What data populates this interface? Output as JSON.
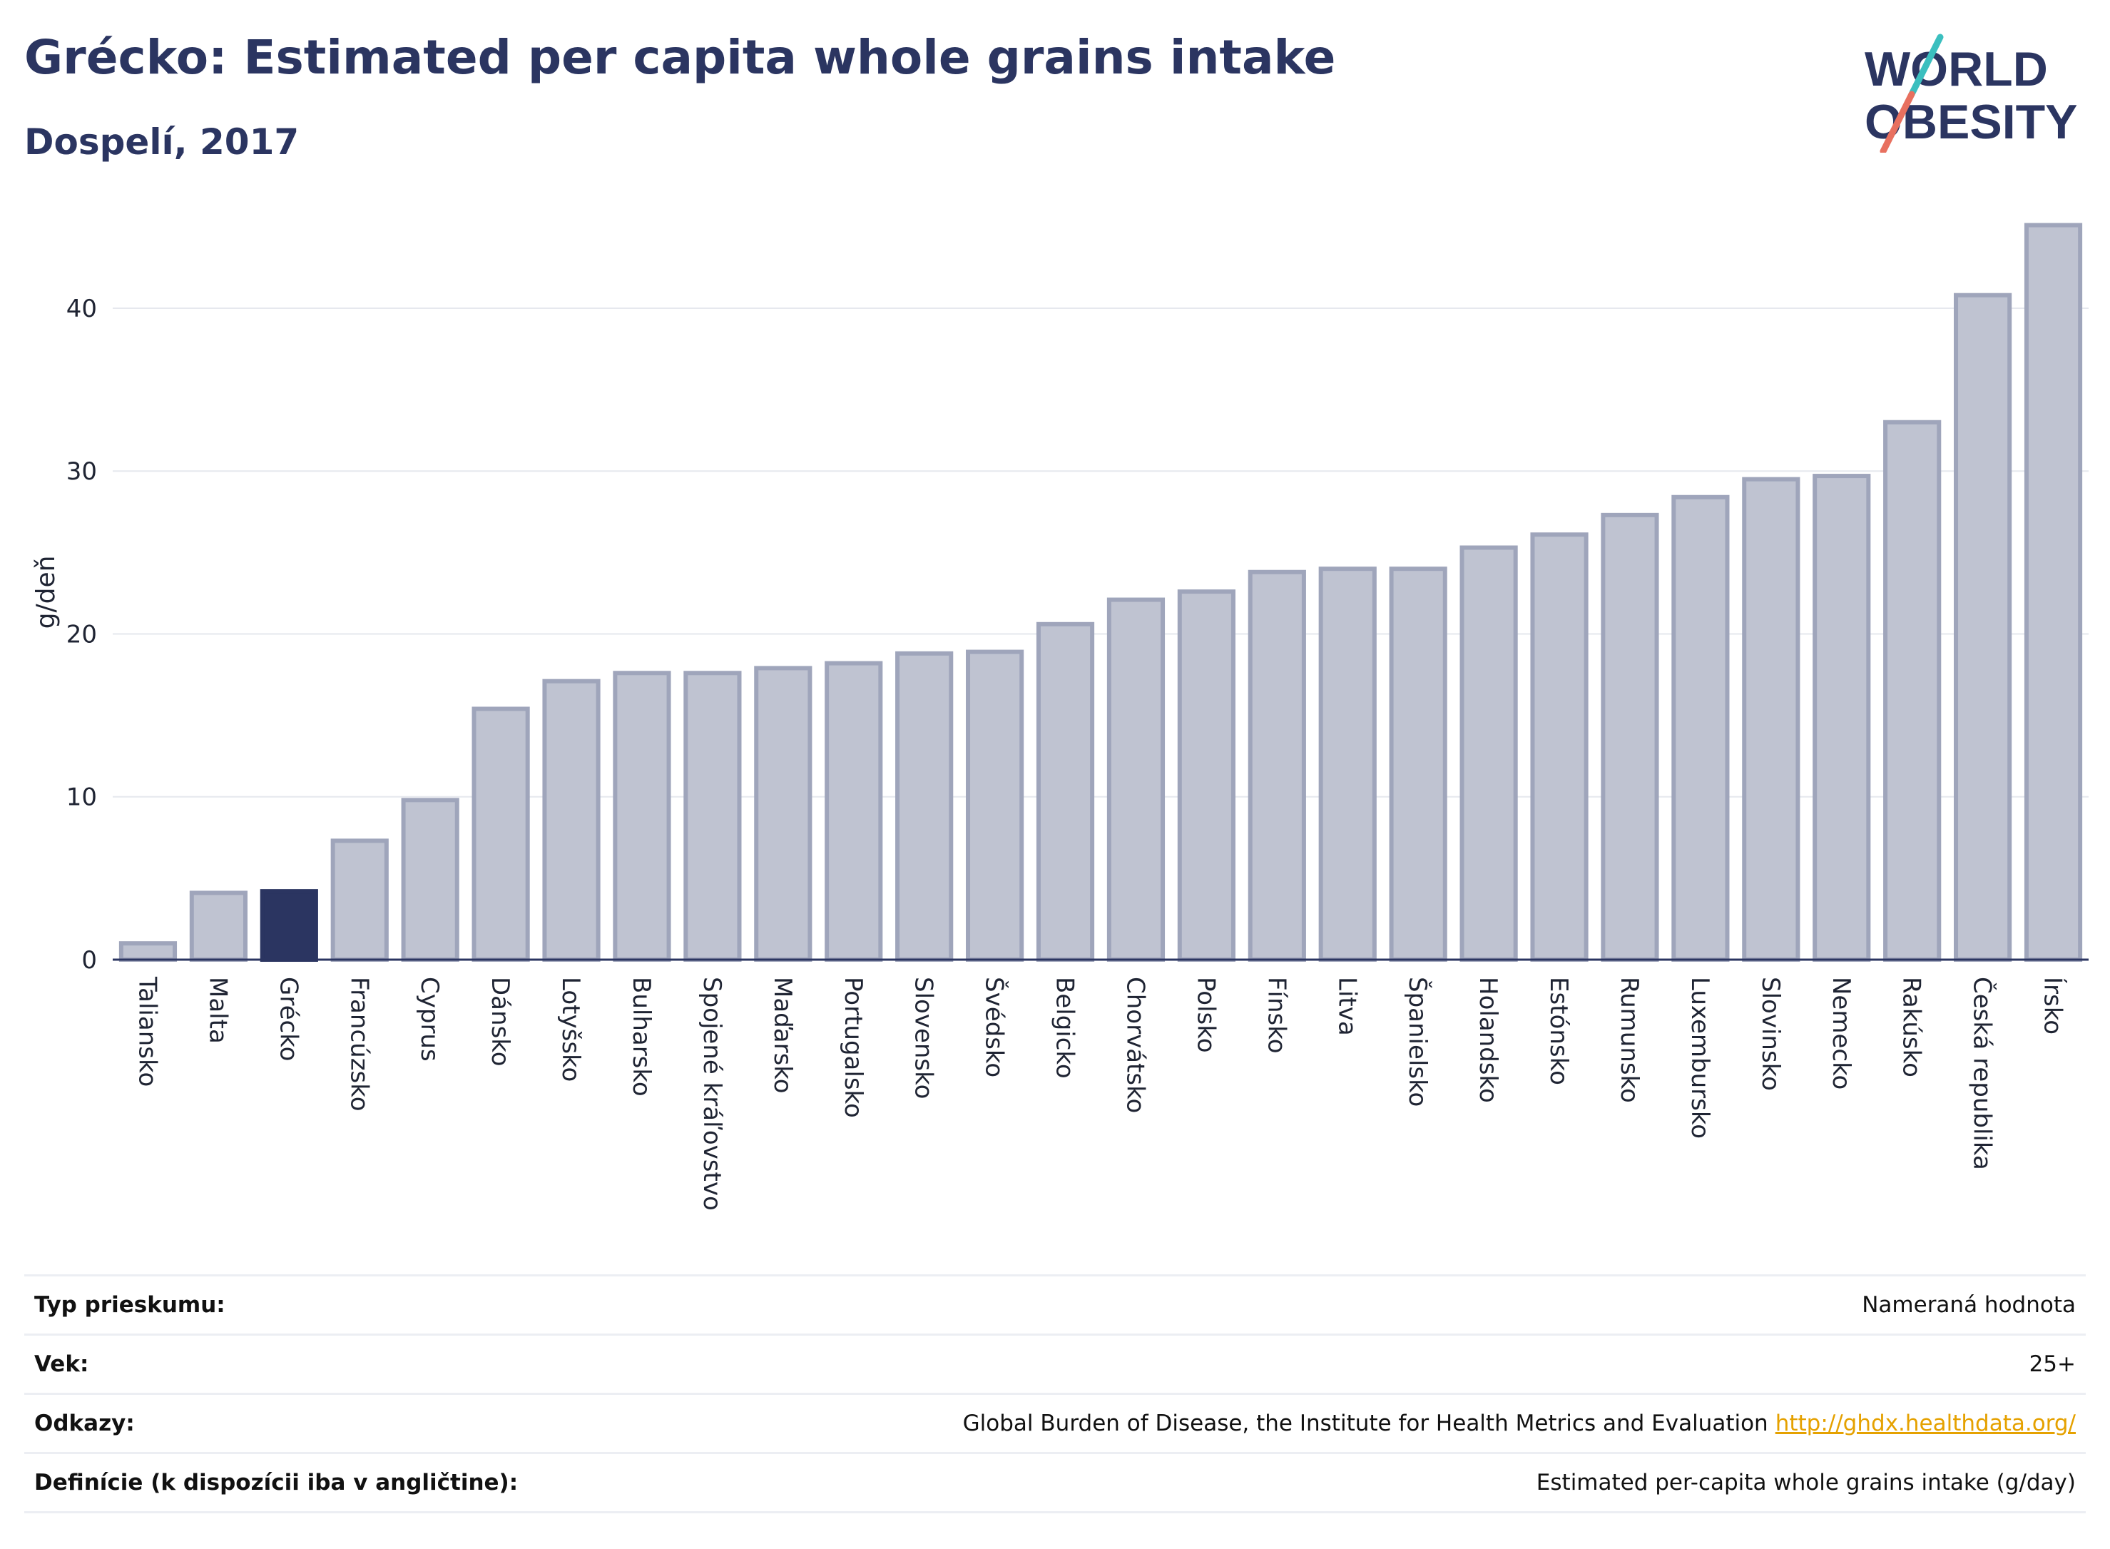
{
  "header": {
    "title": "Grécko: Estimated per capita whole grains intake",
    "subtitle": "Dospelí, 2017"
  },
  "logo": {
    "line1": "WORLD",
    "line2": "OBESITY"
  },
  "chart_data": {
    "type": "bar",
    "ylabel": "g/deň",
    "xlabel": "",
    "ylim": [
      0,
      46
    ],
    "yticks": [
      0,
      10,
      20,
      30,
      40
    ],
    "grid": true,
    "highlight": "Grécko",
    "colors": {
      "bar": "#bfc3d1",
      "bar_border": "#9fa5bb",
      "highlight": "#2b3561",
      "grid": "#e6e8ee",
      "axis": "#2b3561"
    },
    "categories": [
      "Taliansko",
      "Malta",
      "Grécko",
      "Francúzsko",
      "Cyprus",
      "Dánsko",
      "Lotyšsko",
      "Bulharsko",
      "Spojené kráľovstvo",
      "Maďarsko",
      "Portugalsko",
      "Slovensko",
      "Švédsko",
      "Belgicko",
      "Chorvátsko",
      "Polsko",
      "Fínsko",
      "Litva",
      "Španielsko",
      "Holandsko",
      "Estónsko",
      "Rumunsko",
      "Luxembursko",
      "Slovinsko",
      "Nemecko",
      "Rakúsko",
      "Česká republika",
      "Írsko"
    ],
    "values": [
      1.0,
      4.1,
      4.2,
      7.3,
      9.8,
      15.4,
      17.1,
      17.6,
      17.6,
      17.9,
      18.2,
      18.8,
      18.9,
      20.6,
      22.1,
      22.6,
      23.8,
      24.0,
      24.0,
      25.3,
      26.1,
      27.3,
      28.4,
      29.5,
      29.7,
      33.0,
      40.8,
      45.1
    ]
  },
  "info_table": [
    {
      "label": "Typ prieskumu:",
      "value": "Nameraná hodnota",
      "link": ""
    },
    {
      "label": "Vek:",
      "value": "25+",
      "link": ""
    },
    {
      "label": "Odkazy:",
      "value": "Global Burden of Disease, the Institute for Health Metrics and Evaluation",
      "link": "http://ghdx.healthdata.org/"
    },
    {
      "label": "Definície (k dispozícii iba v angličtine):",
      "value": "Estimated per-capita whole grains intake (g/day)",
      "link": ""
    }
  ]
}
